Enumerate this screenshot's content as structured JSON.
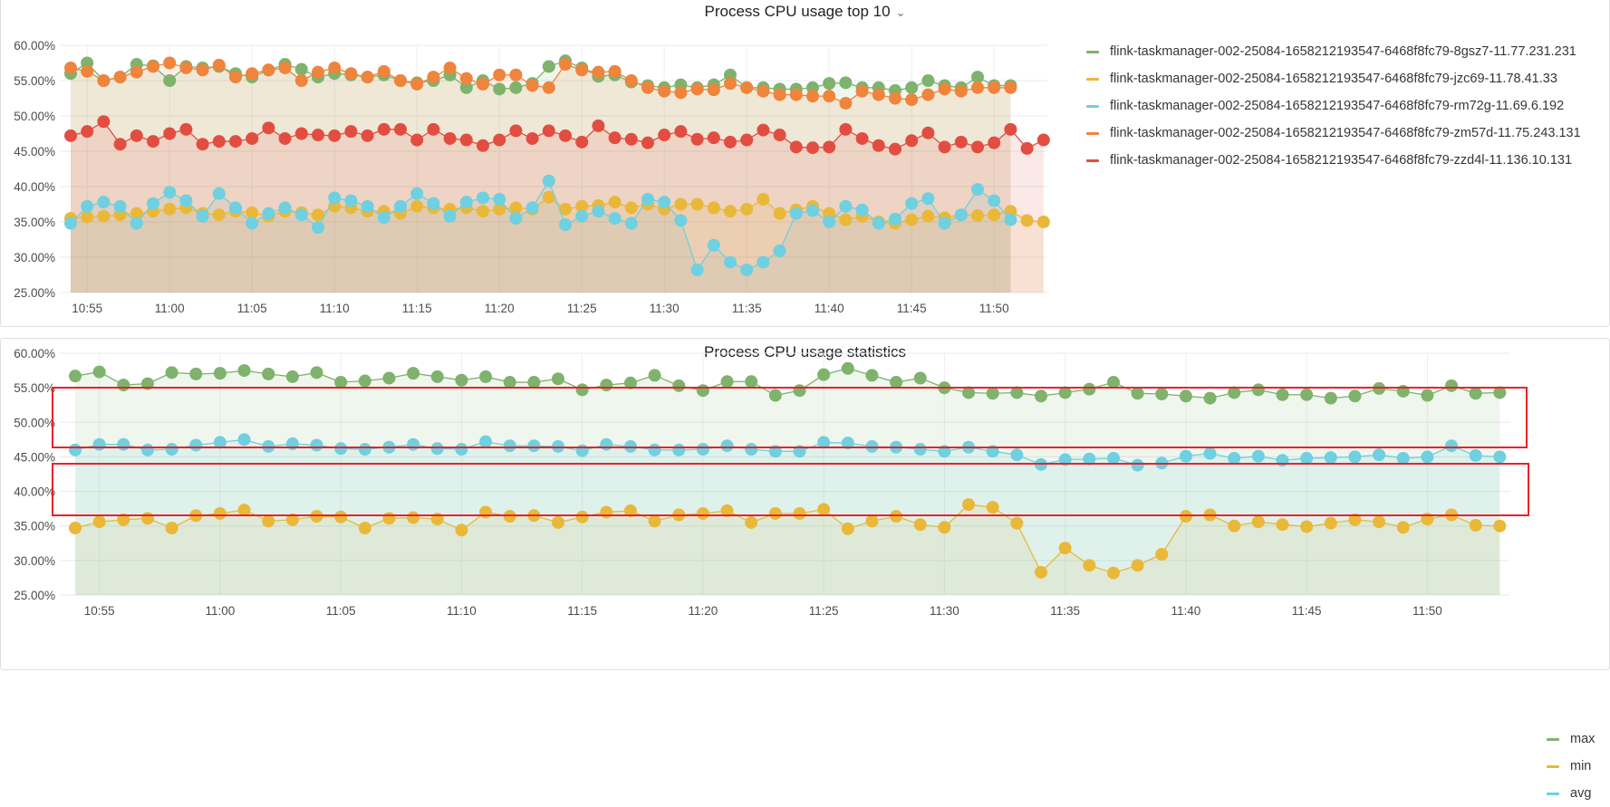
{
  "panel1": {
    "title": "Process CPU usage top 10",
    "menu_icon": "chevron-down-icon",
    "legend": [
      {
        "label": "flink-taskmanager-002-25084-1658212193547-6468f8fc79-8gsz7-11.77.231.231",
        "color": "#7eb26d"
      },
      {
        "label": "flink-taskmanager-002-25084-1658212193547-6468f8fc79-jzc69-11.78.41.33",
        "color": "#eab839"
      },
      {
        "label": "flink-taskmanager-002-25084-1658212193547-6468f8fc79-rm72g-11.69.6.192",
        "color": "#6ed0e0"
      },
      {
        "label": "flink-taskmanager-002-25084-1658212193547-6468f8fc79-zm57d-11.75.243.131",
        "color": "#ef843c"
      },
      {
        "label": "flink-taskmanager-002-25084-1658212193547-6468f8fc79-zzd4l-11.136.10.131",
        "color": "#e24d42"
      }
    ]
  },
  "panel2": {
    "title": "Process CPU usage statistics",
    "legend": [
      {
        "label": "max",
        "color": "#7eb26d"
      },
      {
        "label": "min",
        "color": "#eab839"
      },
      {
        "label": "avg",
        "color": "#6ed0e0"
      }
    ]
  },
  "chart_data": [
    {
      "type": "line",
      "title": "Process CPU usage top 10",
      "x_unit": "minute index starting 10:54",
      "x_tick_labels": [
        "10:55",
        "11:00",
        "11:05",
        "11:10",
        "11:15",
        "11:20",
        "11:25",
        "11:30",
        "11:35",
        "11:40",
        "11:45",
        "11:50"
      ],
      "y_tick_labels": [
        "25.00%",
        "30.00%",
        "35.00%",
        "40.00%",
        "45.00%",
        "50.00%",
        "55.00%",
        "60.00%"
      ],
      "ylim": [
        25,
        60
      ],
      "fill": true,
      "series": [
        {
          "name": "flink-taskmanager-002-25084-1658212193547-6468f8fc79-8gsz7-11.77.231.231",
          "color": "#7eb26d",
          "values": [
            56.0,
            57.5,
            55.0,
            55.5,
            57.3,
            57.1,
            55.0,
            57.0,
            56.8,
            57.0,
            56.0,
            55.5,
            56.5,
            57.3,
            56.6,
            55.5,
            56.0,
            55.8,
            55.5,
            55.8,
            55.0,
            54.7,
            55.0,
            55.8,
            54.0,
            55.0,
            53.8,
            54.0,
            54.6,
            57.0,
            57.8,
            56.8,
            55.6,
            55.8,
            54.8,
            54.3,
            54.0,
            54.4,
            54.0,
            54.4,
            55.8,
            54.0,
            54.0,
            53.8,
            53.8,
            54.0,
            54.6,
            54.7,
            54.0,
            54.0,
            53.6,
            54.0,
            55.0,
            54.3,
            54.0,
            55.5,
            54.3,
            54.3
          ]
        },
        {
          "name": "flink-taskmanager-002-25084-1658212193547-6468f8fc79-jzc69-11.78.41.33",
          "color": "#eab839",
          "values": [
            35.5,
            35.7,
            35.8,
            36.0,
            36.2,
            36.5,
            36.8,
            37.0,
            36.2,
            36.0,
            36.5,
            36.3,
            35.8,
            36.5,
            36.3,
            36.0,
            37.2,
            37.0,
            36.5,
            36.5,
            36.2,
            37.2,
            37.0,
            36.8,
            37.0,
            36.5,
            36.8,
            37.0,
            36.8,
            38.5,
            36.8,
            37.2,
            37.3,
            37.8,
            37.0,
            37.5,
            36.8,
            37.5,
            37.5,
            37.0,
            36.5,
            36.8,
            38.2,
            36.2,
            36.7,
            37.2,
            36.2,
            35.3,
            35.8,
            35.0,
            34.8,
            35.3,
            35.8,
            35.6,
            36.0,
            35.9,
            36.0,
            36.5,
            35.2,
            35.0
          ]
        },
        {
          "name": "flink-taskmanager-002-25084-1658212193547-6468f8fc79-rm72g-11.69.6.192",
          "color": "#6ed0e0",
          "values": [
            34.8,
            37.2,
            37.8,
            37.2,
            34.8,
            37.6,
            39.2,
            38.0,
            35.8,
            39.0,
            37.0,
            34.8,
            36.2,
            37.0,
            36.0,
            34.2,
            38.4,
            38.0,
            37.2,
            35.6,
            37.2,
            39.0,
            37.6,
            35.8,
            37.8,
            38.4,
            38.2,
            35.5,
            37.0,
            40.8,
            34.6,
            35.8,
            36.5,
            35.5,
            34.8,
            38.2,
            37.8,
            35.2,
            28.2,
            31.7,
            29.3,
            28.2,
            29.3,
            30.9,
            36.2,
            36.6,
            35.0,
            37.2,
            36.7,
            34.8,
            35.4,
            37.6,
            38.3,
            34.8,
            36.0,
            39.6,
            38.0,
            35.3
          ]
        },
        {
          "name": "flink-taskmanager-002-25084-1658212193547-6468f8fc79-zm57d-11.75.243.131",
          "color": "#ef843c",
          "values": [
            56.8,
            56.3,
            55.0,
            55.5,
            56.2,
            57.0,
            57.5,
            56.8,
            56.5,
            57.2,
            55.5,
            56.0,
            56.5,
            56.8,
            55.0,
            56.2,
            56.8,
            56.0,
            55.5,
            56.3,
            55.0,
            54.5,
            55.5,
            56.8,
            55.3,
            54.5,
            55.8,
            55.8,
            54.3,
            54.0,
            57.3,
            56.5,
            56.2,
            56.3,
            55.0,
            54.0,
            53.5,
            53.3,
            53.8,
            53.7,
            54.6,
            54.0,
            53.5,
            53.0,
            53.0,
            52.8,
            52.8,
            51.8,
            53.5,
            53.0,
            52.5,
            52.3,
            53.0,
            53.8,
            53.5,
            54.0,
            54.0,
            54.0
          ]
        },
        {
          "name": "flink-taskmanager-002-25084-1658212193547-6468f8fc79-zzd4l-11.136.10.131",
          "color": "#e24d42",
          "values": [
            47.2,
            47.8,
            49.2,
            46.0,
            47.2,
            46.4,
            47.5,
            48.1,
            46.0,
            46.4,
            46.4,
            46.8,
            48.3,
            46.8,
            47.5,
            47.3,
            47.2,
            47.8,
            47.2,
            48.1,
            48.1,
            46.6,
            48.1,
            46.8,
            46.6,
            45.8,
            46.6,
            47.9,
            46.8,
            47.9,
            47.2,
            46.3,
            48.6,
            46.9,
            46.7,
            46.2,
            47.3,
            47.8,
            46.7,
            46.9,
            46.3,
            46.6,
            48.0,
            47.3,
            45.6,
            45.5,
            45.6,
            48.1,
            46.8,
            45.8,
            45.3,
            46.5,
            47.6,
            45.6,
            46.3,
            45.6,
            46.2,
            48.1,
            45.4,
            46.6
          ]
        }
      ]
    },
    {
      "type": "line",
      "title": "Process CPU usage statistics",
      "x_unit": "minute index starting 10:54",
      "x_tick_labels": [
        "10:55",
        "11:00",
        "11:05",
        "11:10",
        "11:15",
        "11:20",
        "11:25",
        "11:30",
        "11:35",
        "11:40",
        "11:45",
        "11:50"
      ],
      "y_tick_labels": [
        "25.00%",
        "30.00%",
        "35.00%",
        "40.00%",
        "45.00%",
        "50.00%",
        "55.00%",
        "60.00%"
      ],
      "ylim": [
        25,
        60
      ],
      "fill": true,
      "highlight_boxes": [
        {
          "series": "max"
        },
        {
          "series": "avg"
        }
      ],
      "series": [
        {
          "name": "max",
          "color": "#7eb26d",
          "values": [
            56.7,
            57.3,
            55.4,
            55.6,
            57.2,
            57.0,
            57.1,
            57.5,
            57.0,
            56.6,
            57.2,
            55.8,
            56.0,
            56.4,
            57.1,
            56.6,
            56.1,
            56.6,
            55.8,
            55.8,
            56.3,
            54.7,
            55.4,
            55.7,
            56.8,
            55.3,
            54.6,
            55.9,
            55.9,
            53.9,
            54.6,
            56.9,
            57.8,
            56.8,
            55.8,
            56.4,
            55.0,
            54.3,
            54.2,
            54.3,
            53.8,
            54.3,
            54.8,
            55.8,
            54.2,
            54.1,
            53.8,
            53.5,
            54.3,
            54.7,
            54.0,
            54.0,
            53.5,
            53.8,
            54.9,
            54.5,
            53.9,
            55.3,
            54.2,
            54.3
          ]
        },
        {
          "name": "min",
          "color": "#eab839",
          "values": [
            34.7,
            35.6,
            35.9,
            36.1,
            34.7,
            36.5,
            36.8,
            37.3,
            35.7,
            35.9,
            36.4,
            36.3,
            34.7,
            36.1,
            36.2,
            36.0,
            34.4,
            37.0,
            36.4,
            36.5,
            35.5,
            36.3,
            37.0,
            37.2,
            35.7,
            36.6,
            36.8,
            37.2,
            35.5,
            36.8,
            36.8,
            37.4,
            34.6,
            35.7,
            36.4,
            35.2,
            34.8,
            38.1,
            37.7,
            35.4,
            28.3,
            31.8,
            29.3,
            28.2,
            29.3,
            30.9,
            36.4,
            36.6,
            35.0,
            35.6,
            35.2,
            34.9,
            35.4,
            35.9,
            35.6,
            34.8,
            36.0,
            36.6,
            35.1,
            35.0
          ]
        },
        {
          "name": "avg",
          "color": "#6ed0e0",
          "values": [
            46.0,
            46.8,
            46.8,
            46.0,
            46.1,
            46.7,
            47.1,
            47.5,
            46.5,
            46.9,
            46.7,
            46.2,
            46.1,
            46.4,
            46.8,
            46.2,
            46.1,
            47.2,
            46.6,
            46.6,
            46.5,
            45.9,
            46.8,
            46.5,
            46.0,
            46.0,
            46.1,
            46.6,
            46.1,
            45.8,
            45.8,
            47.1,
            47.0,
            46.5,
            46.4,
            46.1,
            45.8,
            46.4,
            45.8,
            45.3,
            43.9,
            44.6,
            44.7,
            44.8,
            43.8,
            44.1,
            45.1,
            45.5,
            44.8,
            45.1,
            44.5,
            44.8,
            44.9,
            45.0,
            45.3,
            44.8,
            45.0,
            46.6,
            45.2,
            45.0
          ]
        }
      ]
    }
  ]
}
